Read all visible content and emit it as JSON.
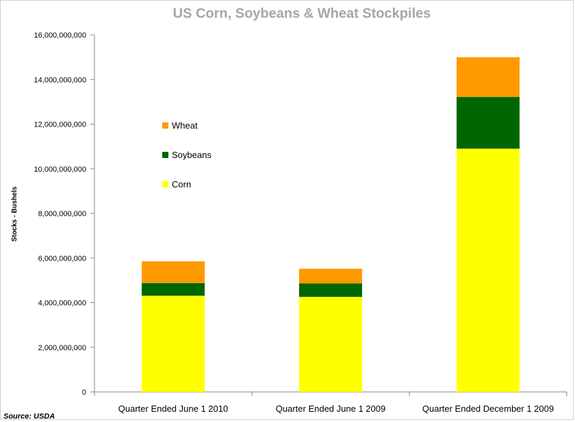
{
  "chart_data": {
    "type": "bar",
    "stacked": true,
    "title": "US Corn, Soybeans & Wheat Stockpiles",
    "xlabel": "",
    "ylabel": "Stocks - Bushels",
    "ylim": [
      0,
      16000000000
    ],
    "yticks": [
      0,
      2000000000,
      4000000000,
      6000000000,
      8000000000,
      10000000000,
      12000000000,
      14000000000,
      16000000000
    ],
    "ytick_labels": [
      "0",
      "2,000,000,000",
      "4,000,000,000",
      "6,000,000,000",
      "8,000,000,000",
      "10,000,000,000",
      "12,000,000,000",
      "14,000,000,000",
      "16,000,000,000"
    ],
    "categories": [
      "Quarter Ended June 1 2010",
      "Quarter Ended June 1 2009",
      "Quarter Ended December 1 2009"
    ],
    "series": [
      {
        "name": "Corn",
        "color": "#ffff00",
        "values": [
          4310000000,
          4260000000,
          10900000000
        ]
      },
      {
        "name": "Soybeans",
        "color": "#006600",
        "values": [
          570000000,
          600000000,
          2320000000
        ]
      },
      {
        "name": "Wheat",
        "color": "#ff9900",
        "values": [
          970000000,
          660000000,
          1780000000
        ]
      }
    ],
    "legend": {
      "placement": "upper-left inside plot",
      "order": [
        "Wheat",
        "Soybeans",
        "Corn"
      ]
    },
    "grid": false
  },
  "source_note": "Source: USDA"
}
